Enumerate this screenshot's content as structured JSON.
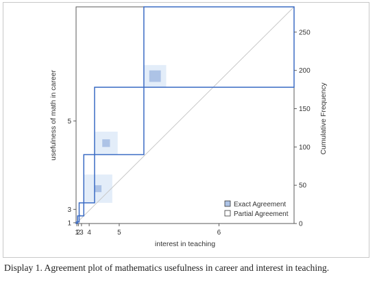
{
  "chart_data": {
    "type": "agreement-plot",
    "xlabel": "interest in teaching",
    "ylabel": "usefulness of math in career",
    "y2label": "Cumulative Frequency",
    "x_ticks": [
      "1",
      "2",
      "3",
      "4",
      "5",
      "6"
    ],
    "y_ticks": [
      "1",
      "3",
      "5"
    ],
    "y2_ticks": [
      "0",
      "50",
      "100",
      "150",
      "200",
      "250"
    ],
    "y2lim": [
      0,
      283
    ],
    "categories": [
      "1",
      "2",
      "3",
      "4",
      "5",
      "6"
    ],
    "row_cum": [
      2,
      10,
      27,
      90,
      178,
      283
    ],
    "col_cum": [
      2,
      4,
      10,
      24,
      88,
      283
    ],
    "exact_agreement": [
      0,
      0,
      1,
      9,
      10,
      15
    ],
    "partial_agreement": [
      0,
      0,
      2,
      37,
      30,
      29
    ],
    "legend": [
      "Exact Agreement",
      "Partial Agreement"
    ],
    "legend_position": "bottom-right",
    "colors": {
      "exact": "#adc3e6",
      "partial": "#e3edf9",
      "line": "#3a6bc4",
      "diagonal": "#c8c8c8"
    }
  },
  "caption": "Display 1. Agreement plot of mathematics usefulness in career and interest in teaching."
}
